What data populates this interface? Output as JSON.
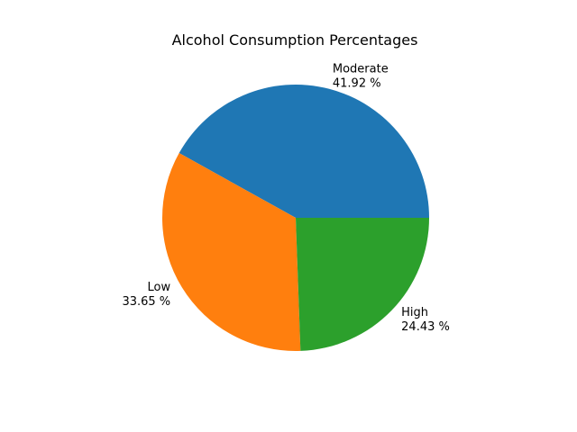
{
  "chart_data": {
    "type": "pie",
    "title": "Alcohol Consumption Percentages",
    "slices": [
      {
        "label": "Moderate",
        "value": 41.92,
        "value_label": "41.92 %",
        "color": "#1f77b4"
      },
      {
        "label": "Low",
        "value": 33.65,
        "value_label": "33.65 %",
        "color": "#ff7f0e"
      },
      {
        "label": "High",
        "value": 24.43,
        "value_label": "24.43 %",
        "color": "#2ca02c"
      }
    ],
    "start_angle_deg": 0,
    "direction": "counterclockwise",
    "legend": "none"
  }
}
